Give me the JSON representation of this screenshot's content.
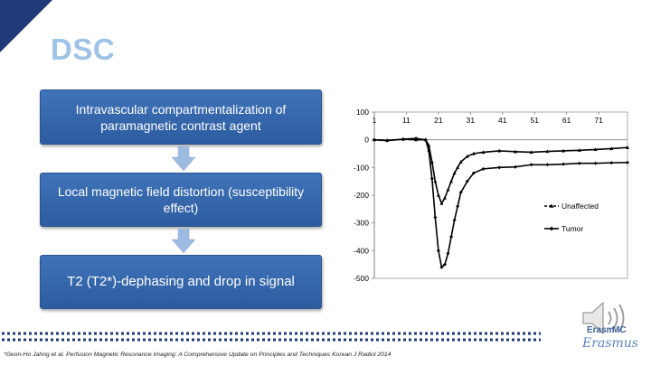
{
  "slide": {
    "title": "DSC",
    "footnote": "*Geon-Ho Jahng et al. Perfusion Magnetic Resonance Imaging: A Comprehensive Update on Principles and Techniques Korean J Radiol 2014"
  },
  "flow": {
    "steps": [
      "Intravascular compartmentalization of paramagnetic contrast agent",
      "Local magnetic field distortion (susceptibility effect)",
      "T2 (T2*)-dephasing and drop in signal"
    ]
  },
  "logo": {
    "name": "Erasm",
    "suffix": "MC",
    "script": "Erasmus"
  },
  "colors": {
    "title": "#9dc3e6",
    "box": "#3467ac",
    "arrow": "#9dbbe0",
    "corner": "#1f3b7a",
    "dots": "#1f3b7a"
  },
  "chart_data": {
    "type": "line",
    "x_tick_labels": [
      "1",
      "11",
      "21",
      "31",
      "41",
      "51",
      "61",
      "71"
    ],
    "y_tick_labels": [
      "100",
      "0",
      "-100",
      "-200",
      "-300",
      "-400",
      "-500"
    ],
    "ylim": [
      -500,
      100
    ],
    "xlim": [
      1,
      80
    ],
    "legend_position": "right",
    "series": [
      {
        "name": "Unaffected",
        "marker": "triangle",
        "x": [
          1,
          5,
          10,
          14,
          17,
          18,
          19,
          20,
          21,
          22,
          23,
          24,
          25,
          26,
          27,
          28,
          30,
          32,
          35,
          40,
          45,
          50,
          55,
          60,
          65,
          70,
          75,
          80
        ],
        "y": [
          0,
          -2,
          2,
          0,
          0,
          -20,
          -80,
          -150,
          -200,
          -230,
          -210,
          -180,
          -150,
          -120,
          -100,
          -80,
          -60,
          -50,
          -45,
          -40,
          -43,
          -45,
          -42,
          -40,
          -38,
          -35,
          -32,
          -28
        ]
      },
      {
        "name": "Tumor",
        "marker": "diamond",
        "x": [
          1,
          5,
          10,
          14,
          17,
          18,
          19,
          20,
          21,
          22,
          23,
          24,
          25,
          26,
          27,
          28,
          30,
          32,
          35,
          40,
          45,
          50,
          55,
          60,
          65,
          70,
          75,
          80
        ],
        "y": [
          0,
          -3,
          2,
          5,
          0,
          -40,
          -140,
          -280,
          -400,
          -460,
          -450,
          -410,
          -350,
          -290,
          -240,
          -190,
          -150,
          -120,
          -105,
          -100,
          -98,
          -90,
          -90,
          -88,
          -85,
          -85,
          -83,
          -82
        ]
      }
    ]
  }
}
